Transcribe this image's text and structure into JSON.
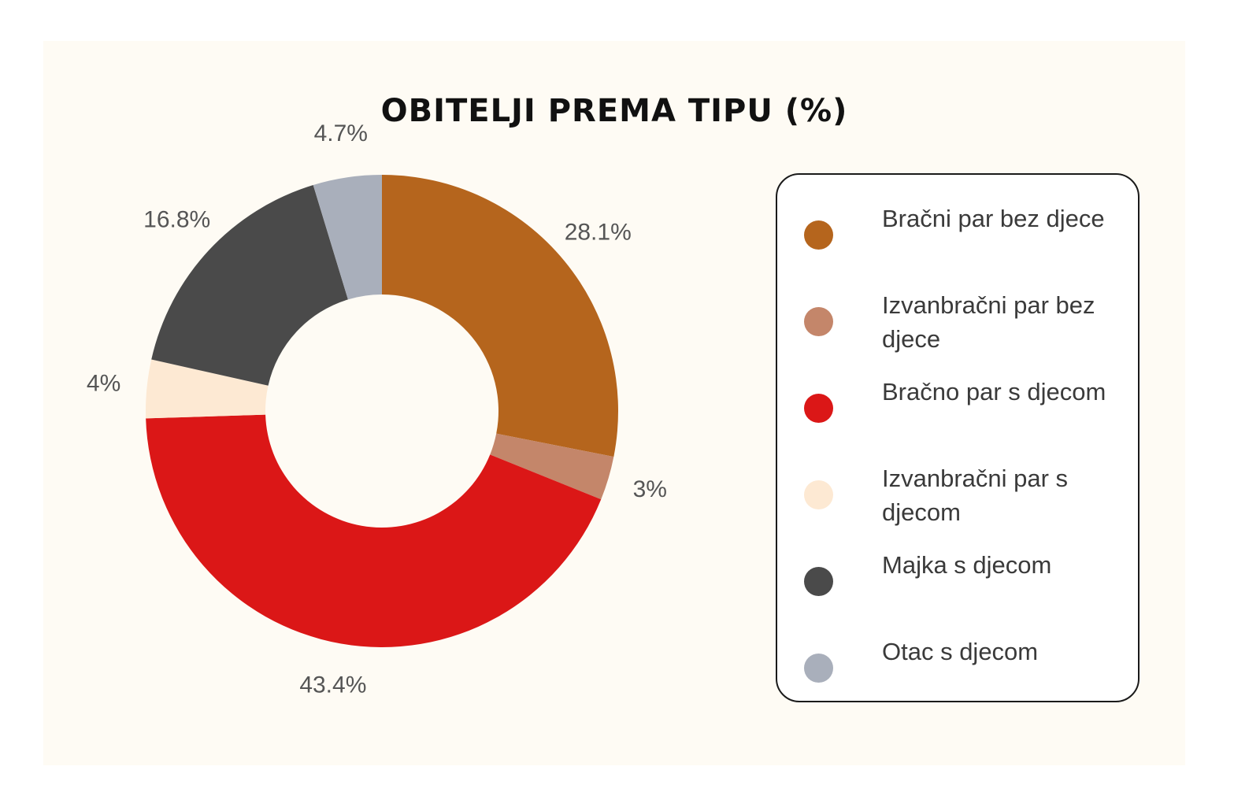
{
  "chart_data": {
    "type": "pie",
    "title": "OBITELJI PREMA TIPU (%)",
    "unit": "%",
    "slices": [
      {
        "name": "Bračni par bez djece",
        "value": 28.1,
        "label": "28.1%",
        "color": "#b5651d"
      },
      {
        "name": "Izvanbračni par bez djece",
        "value": 3,
        "label": "3%",
        "color": "#c4866a"
      },
      {
        "name": "Bračno par s djecom",
        "value": 43.4,
        "label": "43.4%",
        "color": "#db1717"
      },
      {
        "name": "Izvanbračni par s djecom",
        "value": 4,
        "label": "4%",
        "color": "#fde9d3"
      },
      {
        "name": "Majka s djecom",
        "value": 16.8,
        "label": "16.8%",
        "color": "#4a4a4a"
      },
      {
        "name": "Otac s djecom",
        "value": 4.7,
        "label": "4.7%",
        "color": "#a9afbb"
      }
    ],
    "legend_position": "right",
    "hole": true
  }
}
